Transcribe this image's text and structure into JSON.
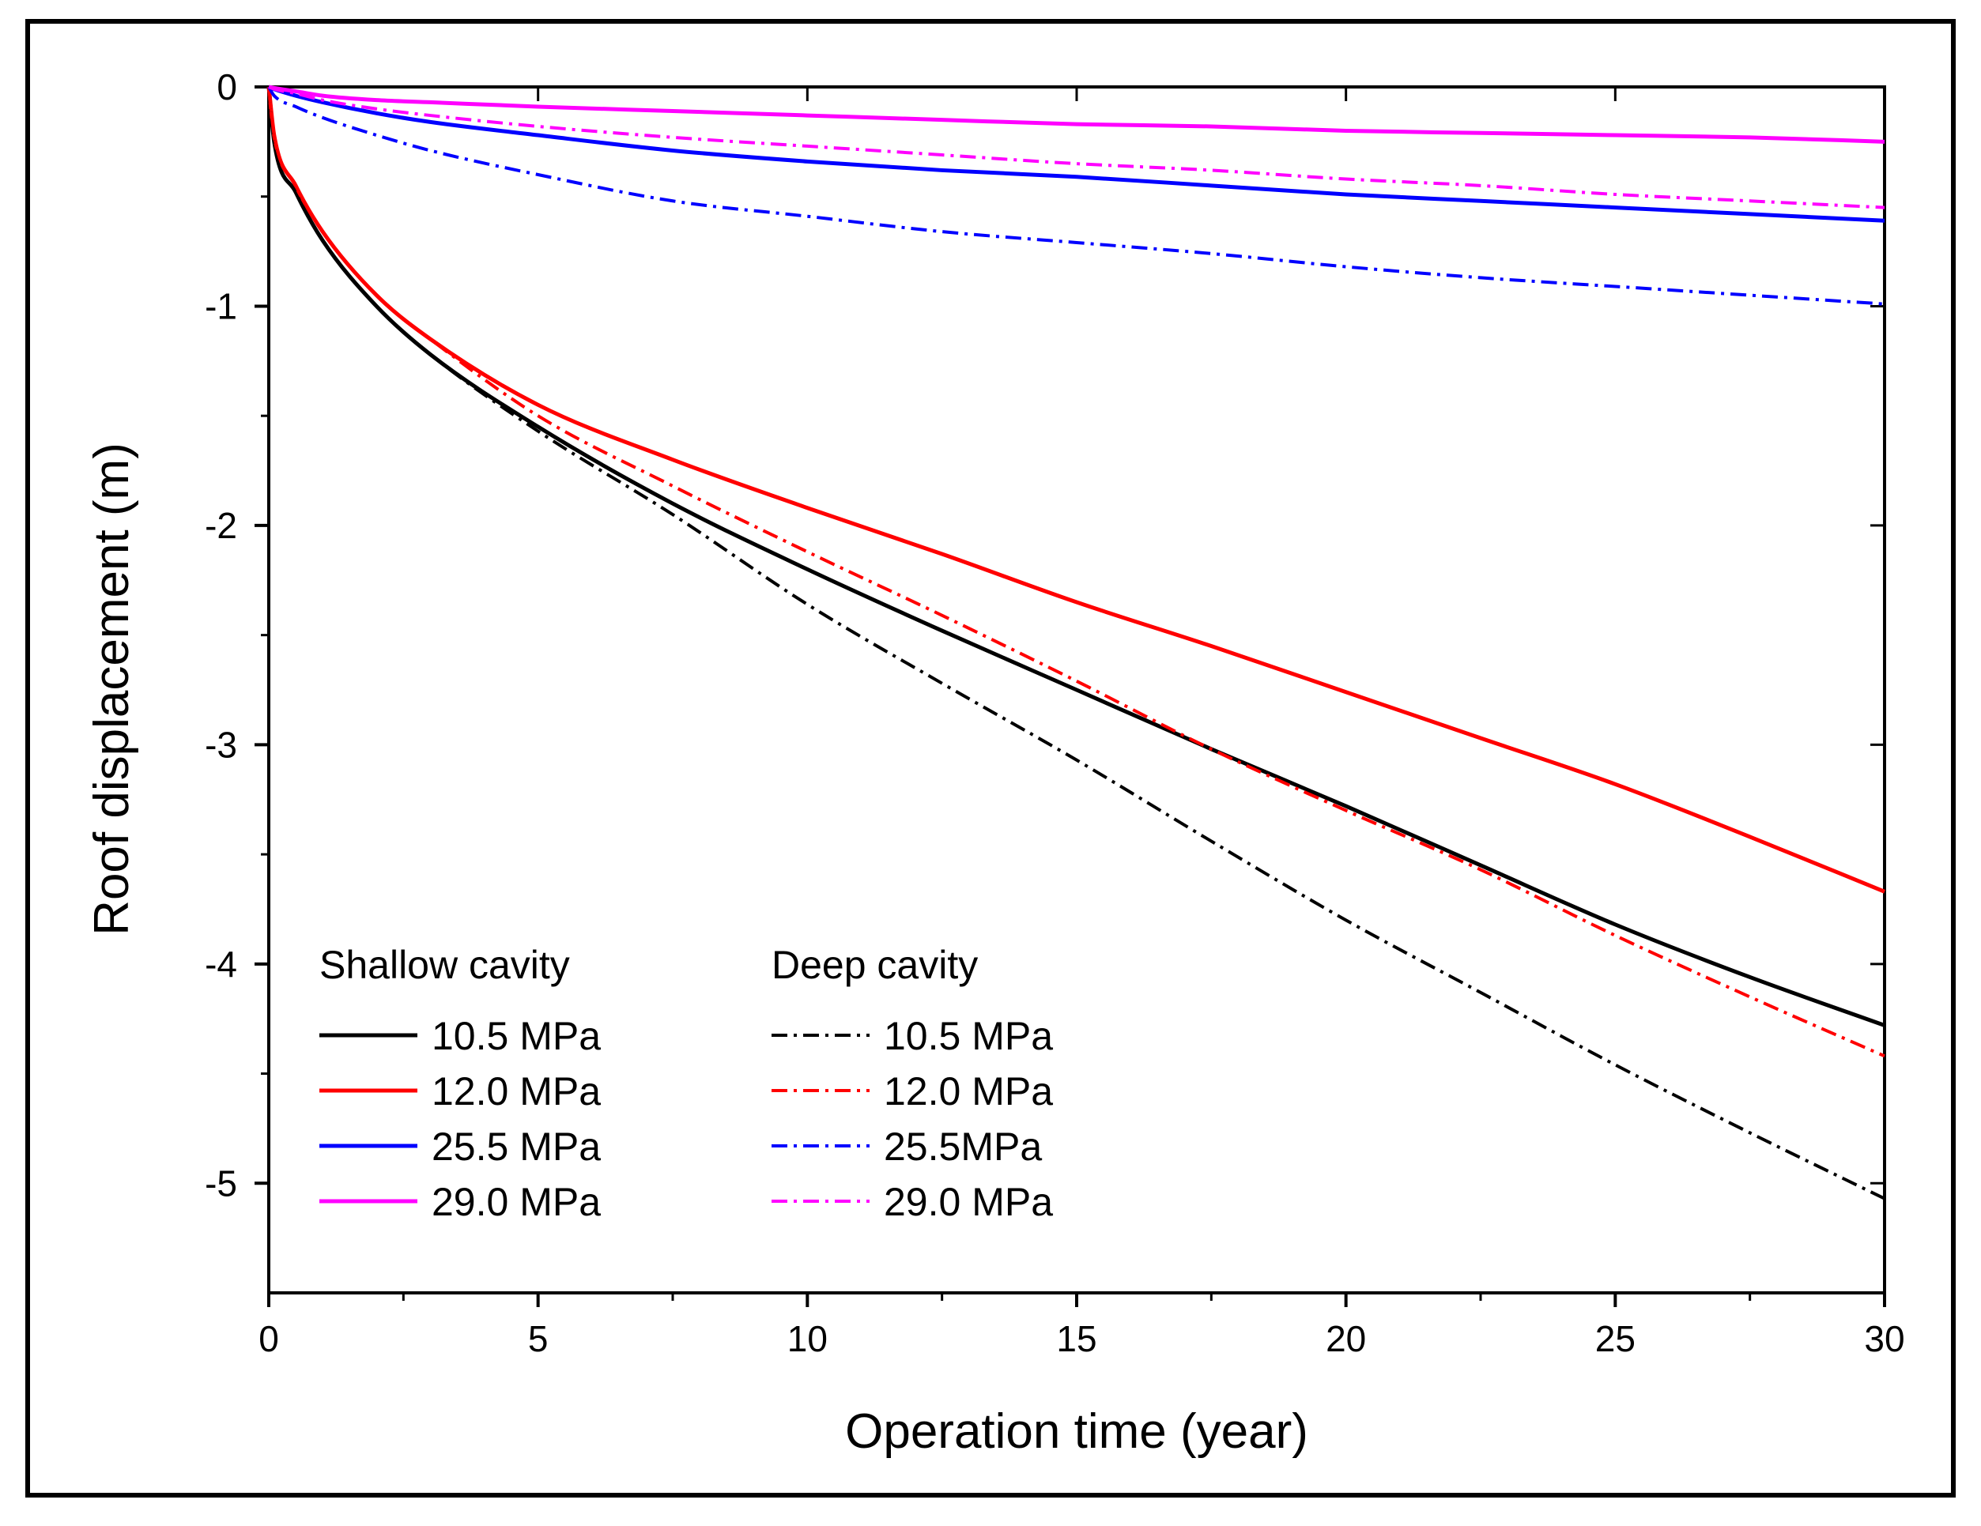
{
  "chart_data": {
    "type": "line",
    "title": "",
    "xlabel": "Operation time (year)",
    "ylabel": "Roof displacement (m)",
    "xlim": [
      0,
      30
    ],
    "ylim": [
      -5.5,
      0
    ],
    "x_ticks": [
      0,
      5,
      10,
      15,
      20,
      25,
      30
    ],
    "x_tick_labels": [
      "0",
      "5",
      "10",
      "15",
      "20",
      "25",
      "30"
    ],
    "y_ticks": [
      0,
      -1,
      -2,
      -3,
      -4,
      -5
    ],
    "y_tick_labels": [
      "0",
      "-1",
      "-2",
      "-3",
      "-4",
      "-5"
    ],
    "grid": false,
    "legend": {
      "placement": "bottom-left",
      "groups": [
        {
          "title": "Shallow cavity",
          "entries": [
            "10.5 MPa",
            "12.0 MPa",
            "25.5 MPa",
            "29.0 MPa"
          ]
        },
        {
          "title": "Deep cavity",
          "entries": [
            "10.5 MPa",
            "12.0 MPa",
            "25.5MPa",
            "29.0 MPa"
          ]
        }
      ]
    },
    "x": [
      0,
      0.1,
      0.5,
      1,
      2,
      3,
      5,
      7.5,
      10,
      12.5,
      15,
      17.5,
      20,
      22.5,
      25,
      27.5,
      30
    ],
    "series": [
      {
        "name": "10.5 MPa",
        "group": "Shallow cavity",
        "color": "#000000",
        "dash": "solid",
        "values": [
          0,
          -0.25,
          -0.48,
          -0.7,
          -1.0,
          -1.22,
          -1.55,
          -1.9,
          -2.2,
          -2.48,
          -2.75,
          -3.02,
          -3.28,
          -3.55,
          -3.82,
          -4.06,
          -4.28
        ]
      },
      {
        "name": "12.0 MPa",
        "group": "Shallow cavity",
        "color": "#ff0000",
        "dash": "solid",
        "values": [
          0,
          -0.22,
          -0.45,
          -0.66,
          -0.95,
          -1.15,
          -1.45,
          -1.7,
          -1.92,
          -2.13,
          -2.35,
          -2.55,
          -2.76,
          -2.97,
          -3.18,
          -3.42,
          -3.67
        ]
      },
      {
        "name": "25.5 MPa",
        "group": "Shallow cavity",
        "color": "#0000ff",
        "dash": "solid",
        "values": [
          0,
          -0.01,
          -0.04,
          -0.07,
          -0.12,
          -0.16,
          -0.22,
          -0.29,
          -0.34,
          -0.38,
          -0.41,
          -0.45,
          -0.49,
          -0.52,
          -0.55,
          -0.58,
          -0.61
        ]
      },
      {
        "name": "29.0 MPa",
        "group": "Shallow cavity",
        "color": "#ff00ff",
        "dash": "solid",
        "values": [
          0,
          -0.005,
          -0.02,
          -0.04,
          -0.06,
          -0.07,
          -0.09,
          -0.11,
          -0.13,
          -0.15,
          -0.17,
          -0.18,
          -0.2,
          -0.21,
          -0.22,
          -0.23,
          -0.25
        ]
      },
      {
        "name": "10.5 MPa",
        "group": "Deep cavity",
        "color": "#000000",
        "dash": "dashdot",
        "values": [
          0,
          -0.25,
          -0.48,
          -0.7,
          -1.0,
          -1.22,
          -1.57,
          -1.95,
          -2.36,
          -2.72,
          -3.07,
          -3.44,
          -3.8,
          -4.13,
          -4.46,
          -4.77,
          -5.07
        ]
      },
      {
        "name": "12.0 MPa",
        "group": "Deep cavity",
        "color": "#ff0000",
        "dash": "dashdot",
        "values": [
          0,
          -0.22,
          -0.45,
          -0.66,
          -0.95,
          -1.15,
          -1.5,
          -1.82,
          -2.12,
          -2.41,
          -2.71,
          -3.02,
          -3.3,
          -3.57,
          -3.87,
          -4.15,
          -4.42
        ]
      },
      {
        "name": "25.5MPa",
        "group": "Deep cavity",
        "color": "#0000ff",
        "dash": "dashdot",
        "values": [
          0,
          -0.04,
          -0.09,
          -0.14,
          -0.22,
          -0.29,
          -0.4,
          -0.52,
          -0.59,
          -0.66,
          -0.71,
          -0.76,
          -0.82,
          -0.87,
          -0.91,
          -0.95,
          -0.99
        ]
      },
      {
        "name": "29.0 MPa",
        "group": "Deep cavity",
        "color": "#ff00ff",
        "dash": "dashdot",
        "values": [
          0,
          -0.01,
          -0.03,
          -0.06,
          -0.1,
          -0.13,
          -0.18,
          -0.23,
          -0.27,
          -0.31,
          -0.35,
          -0.38,
          -0.42,
          -0.45,
          -0.49,
          -0.52,
          -0.55
        ]
      }
    ]
  }
}
